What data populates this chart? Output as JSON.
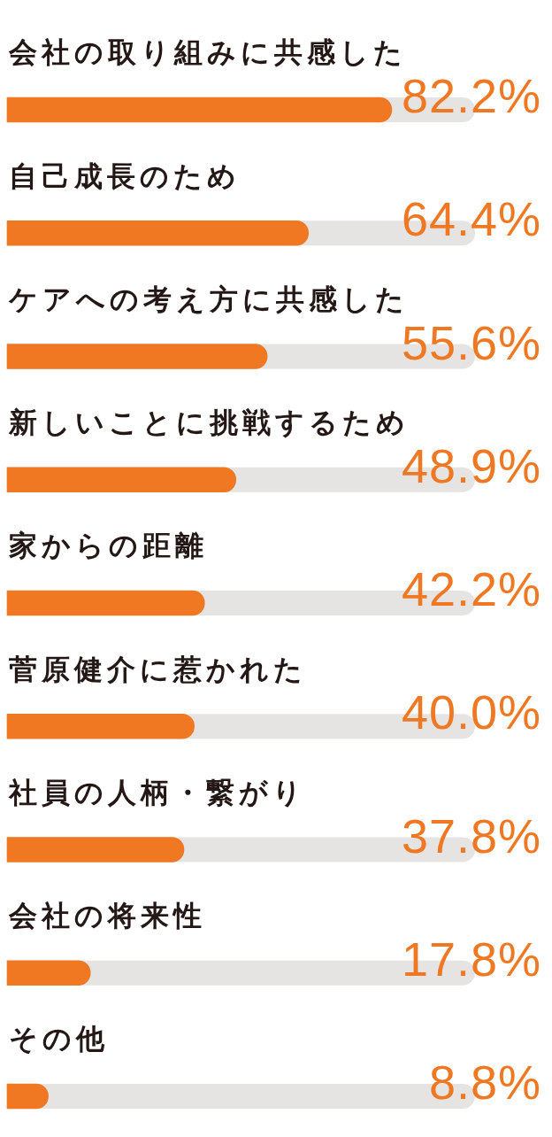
{
  "chart_data": {
    "type": "bar",
    "orientation": "horizontal",
    "categories": [
      "会社の取り組みに共感した",
      "自己成長のため",
      "ケアへの考え方に共感した",
      "新しいことに挑戦するため",
      "家からの距離",
      "菅原健介に惹かれた",
      "社員の人柄・繋がり",
      "会社の将来性",
      "その他"
    ],
    "values": [
      82.2,
      64.4,
      55.6,
      48.9,
      42.2,
      40.0,
      37.8,
      17.8,
      8.8
    ],
    "value_labels": [
      "82.2%",
      "64.4%",
      "55.6%",
      "48.9%",
      "42.2%",
      "40.0%",
      "37.8%",
      "17.8%",
      "8.8%"
    ],
    "color": "#f07822",
    "xlim": [
      0,
      100
    ],
    "tick_labels": "y"
  }
}
